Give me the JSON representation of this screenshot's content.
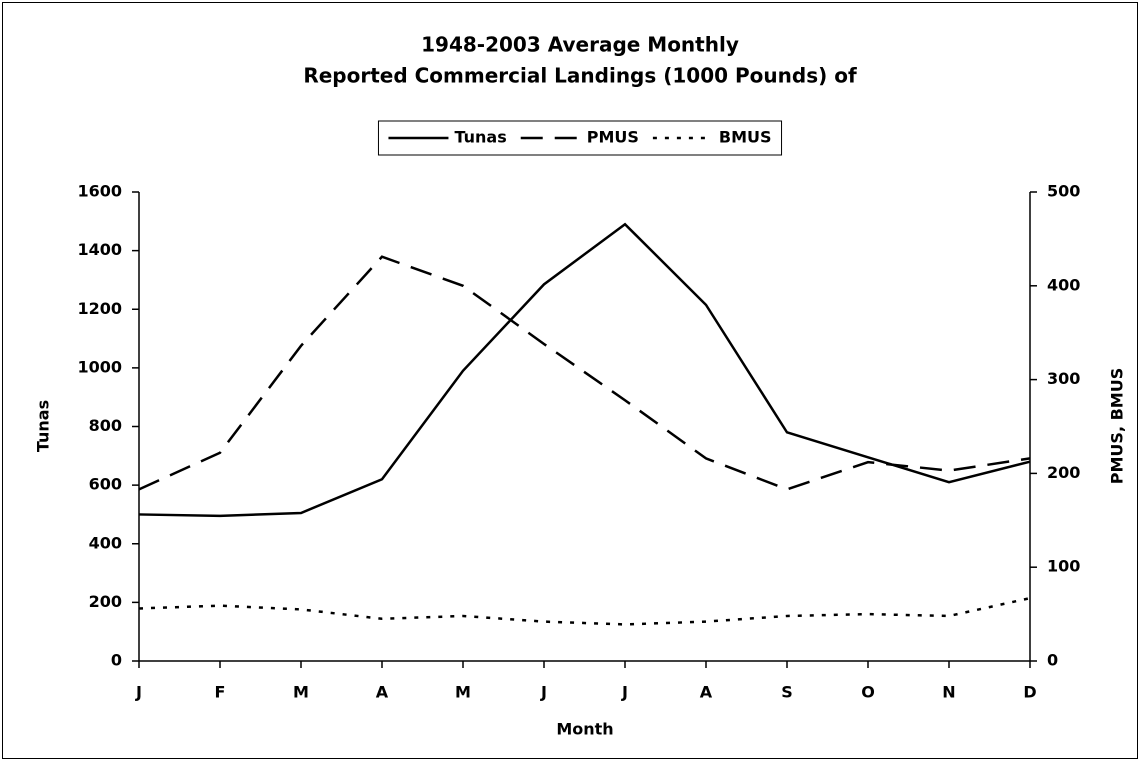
{
  "chart_data": {
    "type": "line",
    "title": [
      "1948-2003 Average Monthly",
      "Reported Commercial Landings (1000 Pounds) of"
    ],
    "xlabel": "Month",
    "ylabel": "Tunas",
    "y2label": "PMUS, BMUS",
    "categories": [
      "J",
      "F",
      "M",
      "A",
      "M",
      "J",
      "J",
      "A",
      "S",
      "O",
      "N",
      "D"
    ],
    "series": [
      {
        "name": "Tunas",
        "color": "#000000",
        "dash": "solid",
        "values": [
          500,
          495,
          505,
          620,
          990,
          1285,
          1490,
          1215,
          780,
          695,
          610,
          680
        ]
      },
      {
        "name": "PMUS",
        "color": "#000000",
        "dash": "dashed",
        "axis": "y2",
        "values": [
          183,
          222,
          336,
          431,
          400,
          338,
          278,
          216,
          183,
          212,
          203,
          216
        ]
      },
      {
        "name": "BMUS",
        "color": "#000000",
        "dash": "dotted",
        "axis": "y2",
        "values": [
          56,
          59,
          55,
          45,
          48,
          42,
          39,
          42,
          48,
          50,
          48,
          67
        ]
      }
    ],
    "ylim": [
      0,
      1600
    ],
    "yticks": [
      0,
      200,
      400,
      600,
      800,
      1000,
      1200,
      1400,
      1600
    ],
    "y2lim": [
      0,
      500
    ],
    "y2ticks": [
      0,
      100,
      200,
      300,
      400,
      500
    ],
    "legend": "top"
  }
}
